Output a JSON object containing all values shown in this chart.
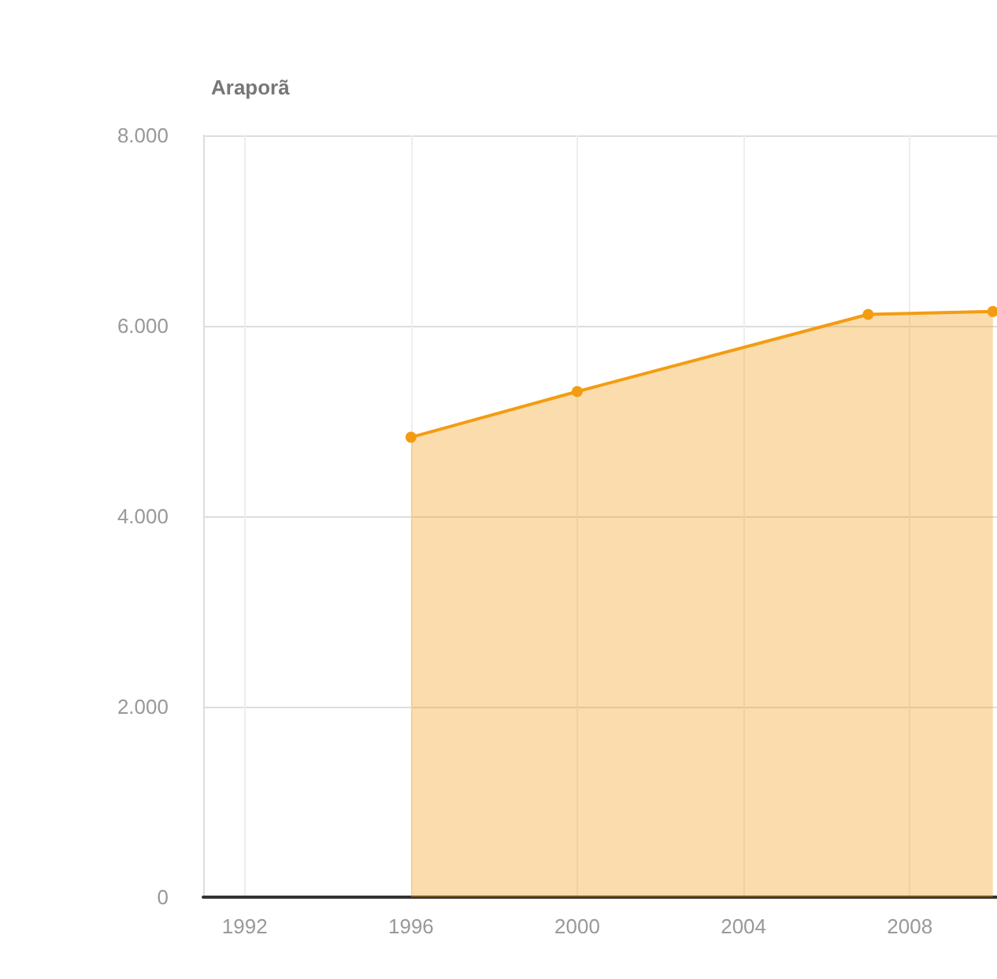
{
  "chart_data": {
    "type": "area",
    "title": "Araporã",
    "x": [
      1996,
      2000,
      2007,
      2010
    ],
    "series": [
      {
        "color": "#f39c12",
        "values": [
          4830,
          5310,
          6120,
          6150
        ]
      }
    ],
    "xlim": [
      1991,
      2010.1
    ],
    "xticks": [
      1992,
      1996,
      2000,
      2004,
      2008
    ],
    "ylim": [
      0,
      8000
    ],
    "yticks": [
      {
        "value": 0,
        "label": "0"
      },
      {
        "value": 2000,
        "label": "2.000"
      },
      {
        "value": 4000,
        "label": "4.000"
      },
      {
        "value": 6000,
        "label": "6.000"
      },
      {
        "value": 8000,
        "label": "8.000"
      }
    ],
    "grid": true,
    "marker": "circle"
  }
}
